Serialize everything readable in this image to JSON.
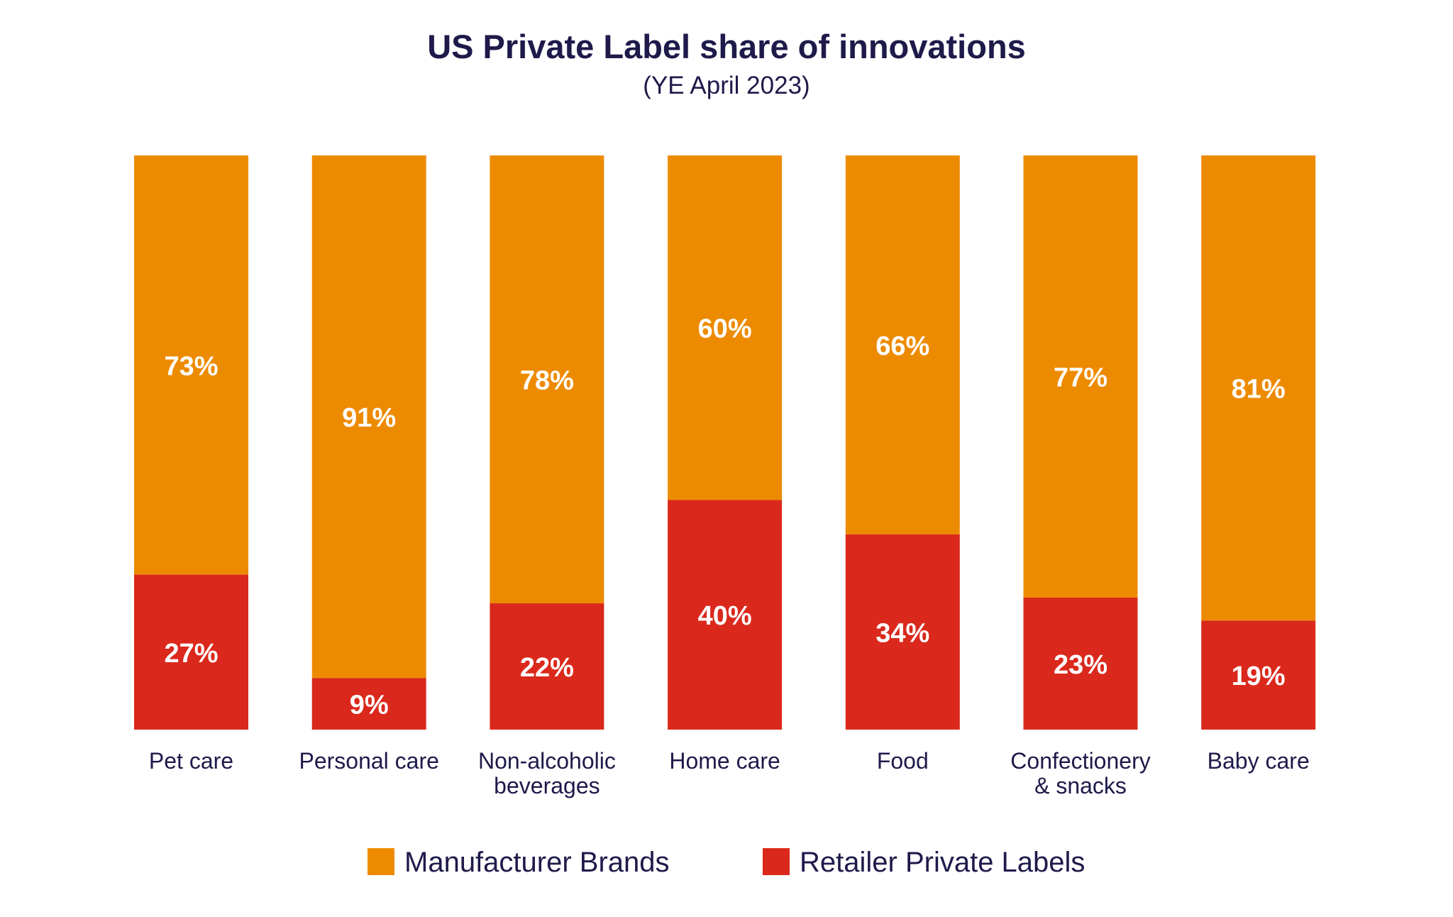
{
  "chart_data": {
    "type": "bar",
    "stacked": true,
    "percent_stacked": true,
    "title": "US Private Label share of innovations",
    "subtitle": "(YE April 2023)",
    "xlabel": "",
    "ylabel": "",
    "ylim": [
      0,
      100
    ],
    "grid": false,
    "legend_position": "bottom",
    "categories": [
      [
        "Pet care"
      ],
      [
        "Personal care"
      ],
      [
        "Non-alcoholic",
        "beverages"
      ],
      [
        "Home care"
      ],
      [
        "Food"
      ],
      [
        "Confectionery",
        "& snacks"
      ],
      [
        "Baby care"
      ]
    ],
    "series": [
      {
        "name": "Retailer Private Labels",
        "color": "#DA291C",
        "values": [
          27,
          9,
          22,
          40,
          34,
          23,
          19
        ],
        "labels": [
          "27%",
          "9%",
          "22%",
          "40%",
          "34%",
          "23%",
          "19%"
        ]
      },
      {
        "name": "Manufacturer Brands",
        "color": "#ED8B00",
        "values": [
          73,
          91,
          78,
          60,
          66,
          77,
          81
        ],
        "labels": [
          "73%",
          "91%",
          "78%",
          "60%",
          "66%",
          "77%",
          "81%"
        ]
      }
    ],
    "legend": [
      "Manufacturer Brands",
      "Retailer Private Labels"
    ]
  }
}
